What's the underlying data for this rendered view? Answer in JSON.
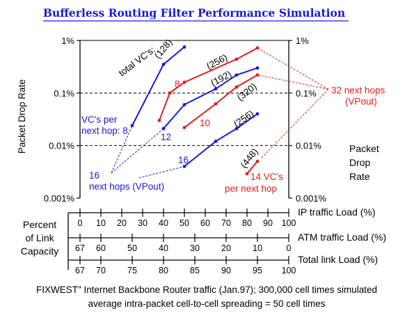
{
  "title": "Bufferless Routing Filter Performance Simulation",
  "footer": {
    "line1": "FIXWEST\" Internet Backbone Router traffic (Jan.97); 300,000 cell times simulated",
    "line2": "average intra-packet cell-to-cell spreading = 50 cell times"
  },
  "colors": {
    "blue": "#1a1ad8",
    "red": "#e01e1e",
    "axis": "#000000"
  },
  "chart_data": {
    "type": "line",
    "ylabel_left": "Packet Drop Rate",
    "ylabel_right": [
      "Packet",
      "Drop",
      "Rate"
    ],
    "y_scale": "log",
    "ylim": [
      1e-05,
      0.01
    ],
    "yticks": [
      {
        "value": 0.01,
        "label": "1%"
      },
      {
        "value": 0.001,
        "label": "0.1%"
      },
      {
        "value": 0.0001,
        "label": "0.01%"
      },
      {
        "value": 1e-05,
        "label": "0.001%"
      }
    ],
    "xlim": [
      0,
      100
    ],
    "x_quantity": "IP traffic Load (%)",
    "axes": [
      {
        "name": "IP traffic Load (%)",
        "ticks": [
          {
            "at": 0,
            "label": "0"
          },
          {
            "at": 10,
            "label": "10"
          },
          {
            "at": 20,
            "label": "20"
          },
          {
            "at": 30,
            "label": "30"
          },
          {
            "at": 40,
            "label": "40"
          },
          {
            "at": 50,
            "label": "50"
          },
          {
            "at": 60,
            "label": "60"
          },
          {
            "at": 70,
            "label": "70"
          },
          {
            "at": 80,
            "label": "80"
          },
          {
            "at": 90,
            "label": "90"
          },
          {
            "at": 100,
            "label": "100"
          }
        ]
      },
      {
        "name": "ATM traffic Load (%)",
        "ticks": [
          {
            "at": 0,
            "label": "67"
          },
          {
            "at": 10,
            "label": "60"
          },
          {
            "at": 25,
            "label": "50"
          },
          {
            "at": 40,
            "label": "40"
          },
          {
            "at": 55,
            "label": "30"
          },
          {
            "at": 70,
            "label": "20"
          },
          {
            "at": 85,
            "label": "10"
          },
          {
            "at": 100,
            "label": "0"
          }
        ]
      },
      {
        "name": "Total link Load (%)",
        "ticks": [
          {
            "at": 0,
            "label": "67"
          },
          {
            "at": 10,
            "label": "70"
          },
          {
            "at": 25,
            "label": "75"
          },
          {
            "at": 40,
            "label": "80"
          },
          {
            "at": 55,
            "label": "85"
          },
          {
            "at": 70,
            "label": "90"
          },
          {
            "at": 85,
            "label": "95"
          },
          {
            "at": 100,
            "label": "100"
          }
        ]
      }
    ],
    "left_block_label": [
      "Percent",
      "of Link",
      "Capacity"
    ],
    "series": [
      {
        "color": "blue",
        "x": [
          25,
          40,
          50
        ],
        "y": [
          0.00024,
          0.0035,
          0.0075
        ]
      },
      {
        "color": "blue",
        "x": [
          40,
          50,
          65,
          75,
          85
        ],
        "y": [
          0.00021,
          0.0006,
          0.0012,
          0.0022,
          0.003
        ]
      },
      {
        "color": "blue",
        "x": [
          50,
          65,
          75,
          85
        ],
        "y": [
          4e-05,
          0.00012,
          0.00021,
          0.0004
        ]
      },
      {
        "color": "red",
        "x": [
          38,
          43,
          50,
          75,
          85
        ],
        "y": [
          0.0003,
          0.001,
          0.0016,
          0.0044,
          0.0072
        ]
      },
      {
        "color": "red",
        "x": [
          50,
          65,
          75,
          85
        ],
        "y": [
          0.00022,
          0.00062,
          0.0013,
          0.0022
        ]
      },
      {
        "color": "red",
        "x": [
          80,
          85
        ],
        "y": [
          2.9e-05,
          5e-05
        ]
      }
    ],
    "annotations": {
      "total_vcs": "total VC's:",
      "vc128": "(128)",
      "vc256a": "(256)",
      "vc192": "(192)",
      "vc320": "(320)",
      "vc256b": "(256)",
      "vc448": "(448)",
      "n8_red": "8",
      "n10_red": "10",
      "n12_blue": "12",
      "n16_blue": "16",
      "vcs_per_1": "VC's per",
      "vcs_per_2": "next hop: 8",
      "hops16_1": "16",
      "hops16_2": "next hops (VPout)",
      "hops32_1": "32 next hops",
      "hops32_2": "(VPout)",
      "vc14_1": "14 VC's",
      "vc14_2": "per next hop"
    }
  }
}
